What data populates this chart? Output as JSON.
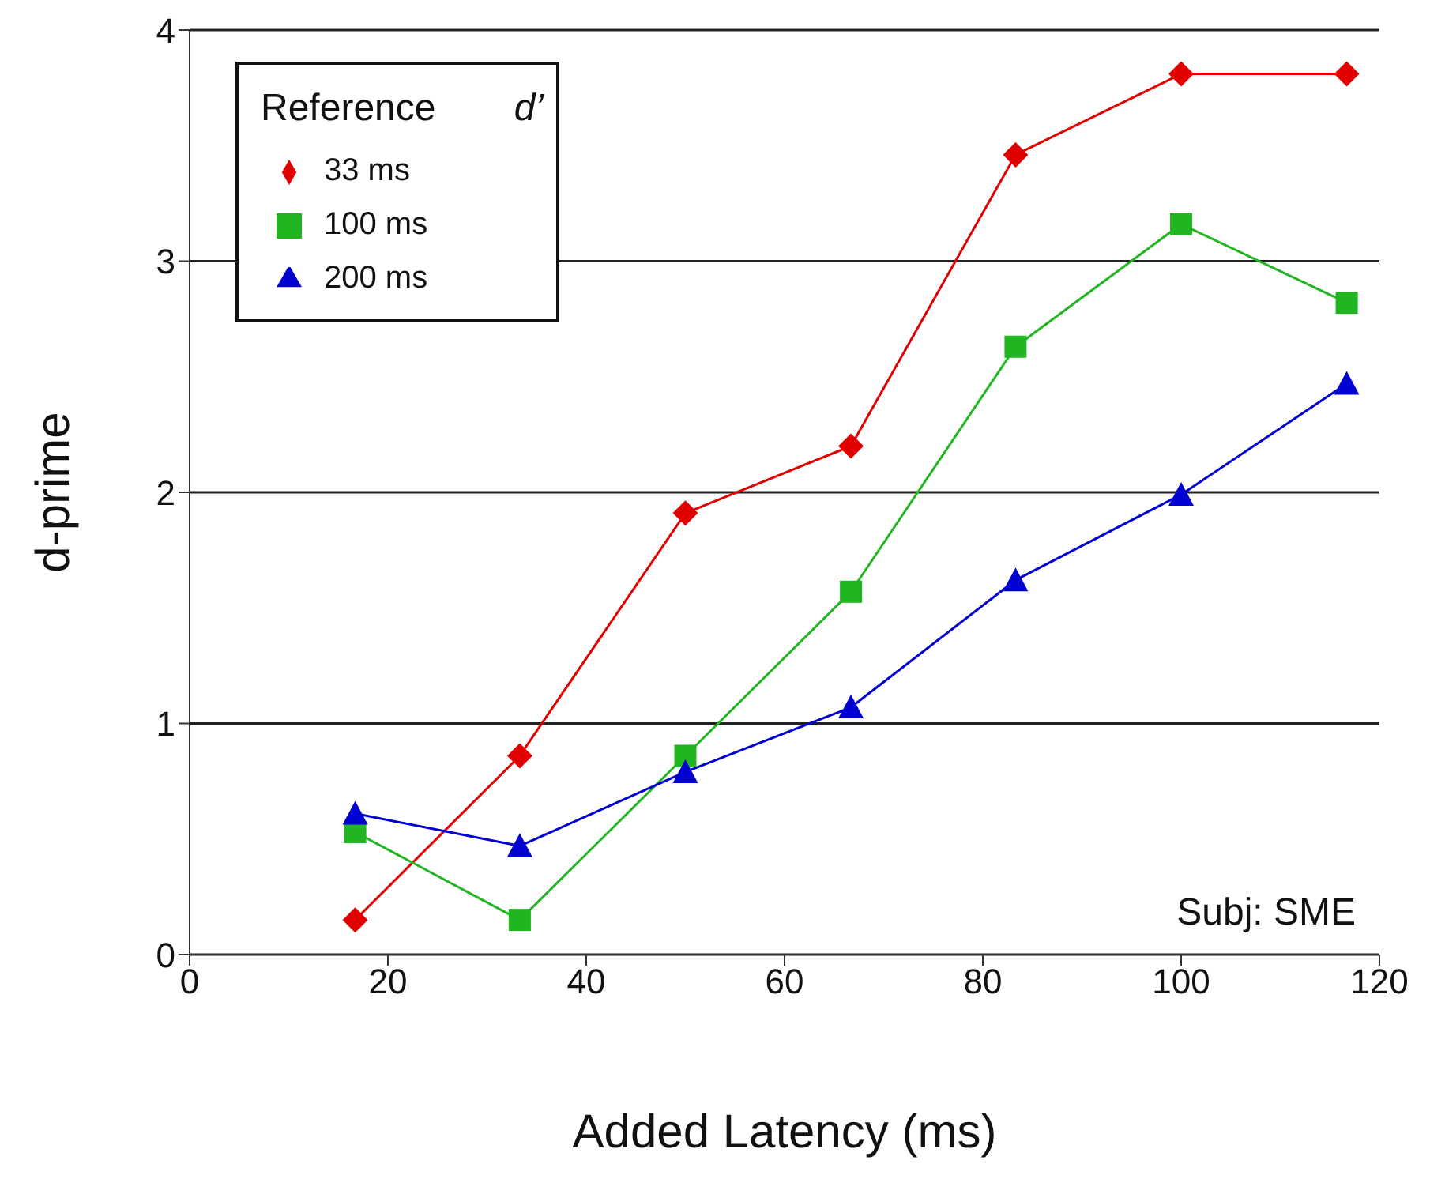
{
  "chart_data": {
    "type": "line",
    "xlabel": "Added Latency (ms)",
    "ylabel": "d-prime",
    "legend_title": "Reference",
    "annotations": [
      "d’",
      "Subj: SME"
    ],
    "x": [
      16.7,
      33.3,
      50,
      66.7,
      83.3,
      100,
      116.7
    ],
    "series": [
      {
        "name": "33 ms",
        "color": "#e00000",
        "marker": "diamond",
        "values": [
          0.15,
          0.86,
          1.91,
          2.2,
          3.46,
          3.81,
          3.81
        ]
      },
      {
        "name": "100 ms",
        "color": "#22b522",
        "marker": "square",
        "values": [
          0.53,
          0.15,
          0.86,
          1.57,
          2.63,
          3.16,
          2.82
        ]
      },
      {
        "name": "200 ms",
        "color": "#0000d0",
        "marker": "triangle",
        "values": [
          0.61,
          0.47,
          0.79,
          1.07,
          1.62,
          1.99,
          2.47
        ]
      }
    ],
    "xlim": [
      0,
      120
    ],
    "xticks": [
      0,
      20,
      40,
      60,
      80,
      100,
      120
    ],
    "ylim": [
      0,
      4
    ],
    "yticks": [
      0,
      1,
      2,
      3,
      4
    ],
    "grid": "y",
    "legend": "top left",
    "line_style": "solid"
  }
}
